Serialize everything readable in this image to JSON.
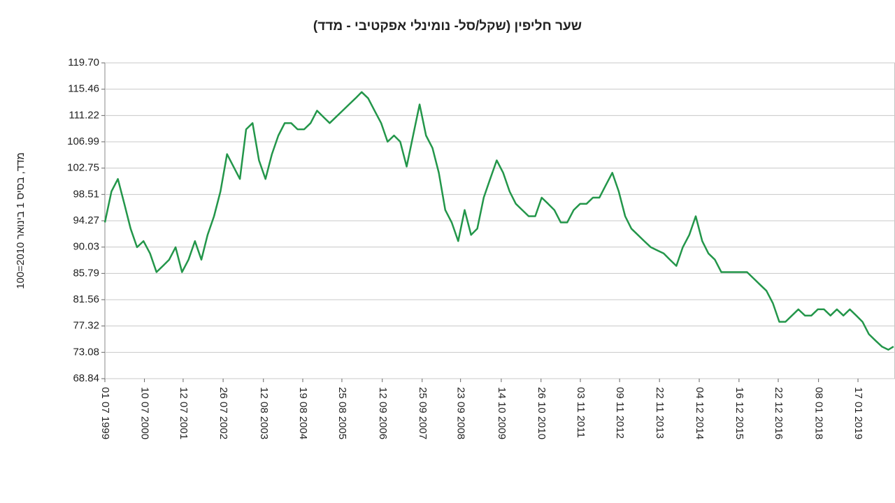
{
  "chart_data": {
    "type": "line",
    "title": "שער חליפין (שקל/סל- נומינלי אפקטיבי - מדד)",
    "y_label": "מדד, בסיס 1 בינואר 2010=100",
    "color": "#23964a",
    "grid": true,
    "ylim": [
      68.84,
      119.7
    ],
    "yticks": [
      68.84,
      73.08,
      77.32,
      81.56,
      85.79,
      90.03,
      94.27,
      98.51,
      102.75,
      106.99,
      111.22,
      115.46,
      {
        "value": 119.7,
        "label": "119.70"
      }
    ],
    "xlim": [
      "1999-07-01",
      "2020-01-03"
    ],
    "xticks": [
      {
        "value": "1999-07-01",
        "label": "01 07 1999"
      },
      {
        "value": "2000-07-10",
        "label": "10 07 2000"
      },
      {
        "value": "2001-07-12",
        "label": "12 07 2001"
      },
      {
        "value": "2002-07-26",
        "label": "26 07 2002"
      },
      {
        "value": "2003-08-12",
        "label": "12 08 2003"
      },
      {
        "value": "2004-08-19",
        "label": "19 08 2004"
      },
      {
        "value": "2005-08-25",
        "label": "25 08 2005"
      },
      {
        "value": "2006-09-12",
        "label": "12 09 2006"
      },
      {
        "value": "2007-09-25",
        "label": "25 09 2007"
      },
      {
        "value": "2008-09-23",
        "label": "23 09 2008"
      },
      {
        "value": "2009-10-14",
        "label": "14 10 2009"
      },
      {
        "value": "2010-10-26",
        "label": "26 10 2010"
      },
      {
        "value": "2011-11-03",
        "label": "03 11 2011"
      },
      {
        "value": "2012-11-09",
        "label": "09 11 2012"
      },
      {
        "value": "2013-11-22",
        "label": "22 11 2013"
      },
      {
        "value": "2014-12-04",
        "label": "04 12 2014"
      },
      {
        "value": "2015-12-16",
        "label": "16 12 2015"
      },
      {
        "value": "2016-12-22",
        "label": "22 12 2016"
      },
      {
        "value": "2018-01-08",
        "label": "08 01 2018"
      },
      {
        "value": "2019-01-17",
        "label": "17 01 2019"
      }
    ],
    "x": [
      "1999-07-01",
      "1999-09-01",
      "1999-11-01",
      "2000-01-01",
      "2000-03-01",
      "2000-05-01",
      "2000-07-01",
      "2000-09-01",
      "2000-11-01",
      "2001-01-01",
      "2001-03-01",
      "2001-05-01",
      "2001-07-01",
      "2001-09-01",
      "2001-11-01",
      "2002-01-01",
      "2002-03-01",
      "2002-05-01",
      "2002-07-01",
      "2002-09-01",
      "2002-11-01",
      "2003-01-01",
      "2003-03-01",
      "2003-05-01",
      "2003-07-01",
      "2003-09-01",
      "2003-11-01",
      "2004-01-01",
      "2004-03-01",
      "2004-05-01",
      "2004-07-01",
      "2004-09-01",
      "2004-11-01",
      "2005-01-01",
      "2005-03-01",
      "2005-05-01",
      "2005-07-01",
      "2005-09-01",
      "2005-11-01",
      "2006-01-01",
      "2006-03-01",
      "2006-05-01",
      "2006-07-01",
      "2006-09-01",
      "2006-11-01",
      "2007-01-01",
      "2007-03-01",
      "2007-05-01",
      "2007-07-01",
      "2007-09-01",
      "2007-11-01",
      "2008-01-01",
      "2008-03-01",
      "2008-05-01",
      "2008-07-01",
      "2008-09-01",
      "2008-11-01",
      "2009-01-01",
      "2009-03-01",
      "2009-05-01",
      "2009-07-01",
      "2009-09-01",
      "2009-11-01",
      "2010-01-01",
      "2010-03-01",
      "2010-05-01",
      "2010-07-01",
      "2010-09-01",
      "2010-11-01",
      "2011-01-01",
      "2011-03-01",
      "2011-05-01",
      "2011-07-01",
      "2011-09-01",
      "2011-11-01",
      "2012-01-01",
      "2012-03-01",
      "2012-05-01",
      "2012-07-01",
      "2012-09-01",
      "2012-11-01",
      "2013-01-01",
      "2013-03-01",
      "2013-05-01",
      "2013-07-01",
      "2013-09-01",
      "2013-11-01",
      "2014-01-01",
      "2014-03-01",
      "2014-05-01",
      "2014-07-01",
      "2014-09-01",
      "2014-11-01",
      "2015-01-01",
      "2015-03-01",
      "2015-05-01",
      "2015-07-01",
      "2015-09-01",
      "2015-11-01",
      "2016-01-01",
      "2016-03-01",
      "2016-05-01",
      "2016-07-01",
      "2016-09-01",
      "2016-11-01",
      "2017-01-01",
      "2017-03-01",
      "2017-05-01",
      "2017-07-01",
      "2017-09-01",
      "2017-11-01",
      "2018-01-01",
      "2018-03-01",
      "2018-05-01",
      "2018-07-01",
      "2018-09-01",
      "2018-11-01",
      "2019-01-01",
      "2019-03-01",
      "2019-05-01",
      "2019-07-01",
      "2019-09-01",
      "2019-11-01",
      "2019-12-20"
    ],
    "values": [
      94,
      99,
      101,
      97,
      93,
      90,
      91,
      89,
      86,
      87,
      88,
      90,
      86,
      88,
      91,
      88,
      92,
      95,
      99,
      105,
      103,
      101,
      109,
      110,
      104,
      101,
      105,
      108,
      110,
      110,
      109,
      109,
      110,
      112,
      111,
      110,
      111,
      112,
      113,
      114,
      115,
      114,
      112,
      110,
      107,
      108,
      107,
      103,
      108,
      113,
      108,
      106,
      102,
      96,
      94,
      91,
      96,
      92,
      93,
      98,
      101,
      104,
      102,
      99,
      97,
      96,
      95,
      95,
      98,
      97,
      96,
      94,
      94,
      96,
      97,
      97,
      98,
      98,
      100,
      102,
      99,
      95,
      93,
      92,
      91,
      90,
      89.5,
      89,
      88,
      87,
      90,
      92,
      95,
      91,
      89,
      88,
      86,
      86,
      86,
      86,
      86,
      85,
      84,
      83,
      81,
      78,
      78,
      79,
      80,
      79,
      79,
      80,
      80,
      79,
      80,
      79,
      80,
      79,
      78,
      76,
      75,
      74,
      73.5,
      74
    ]
  }
}
